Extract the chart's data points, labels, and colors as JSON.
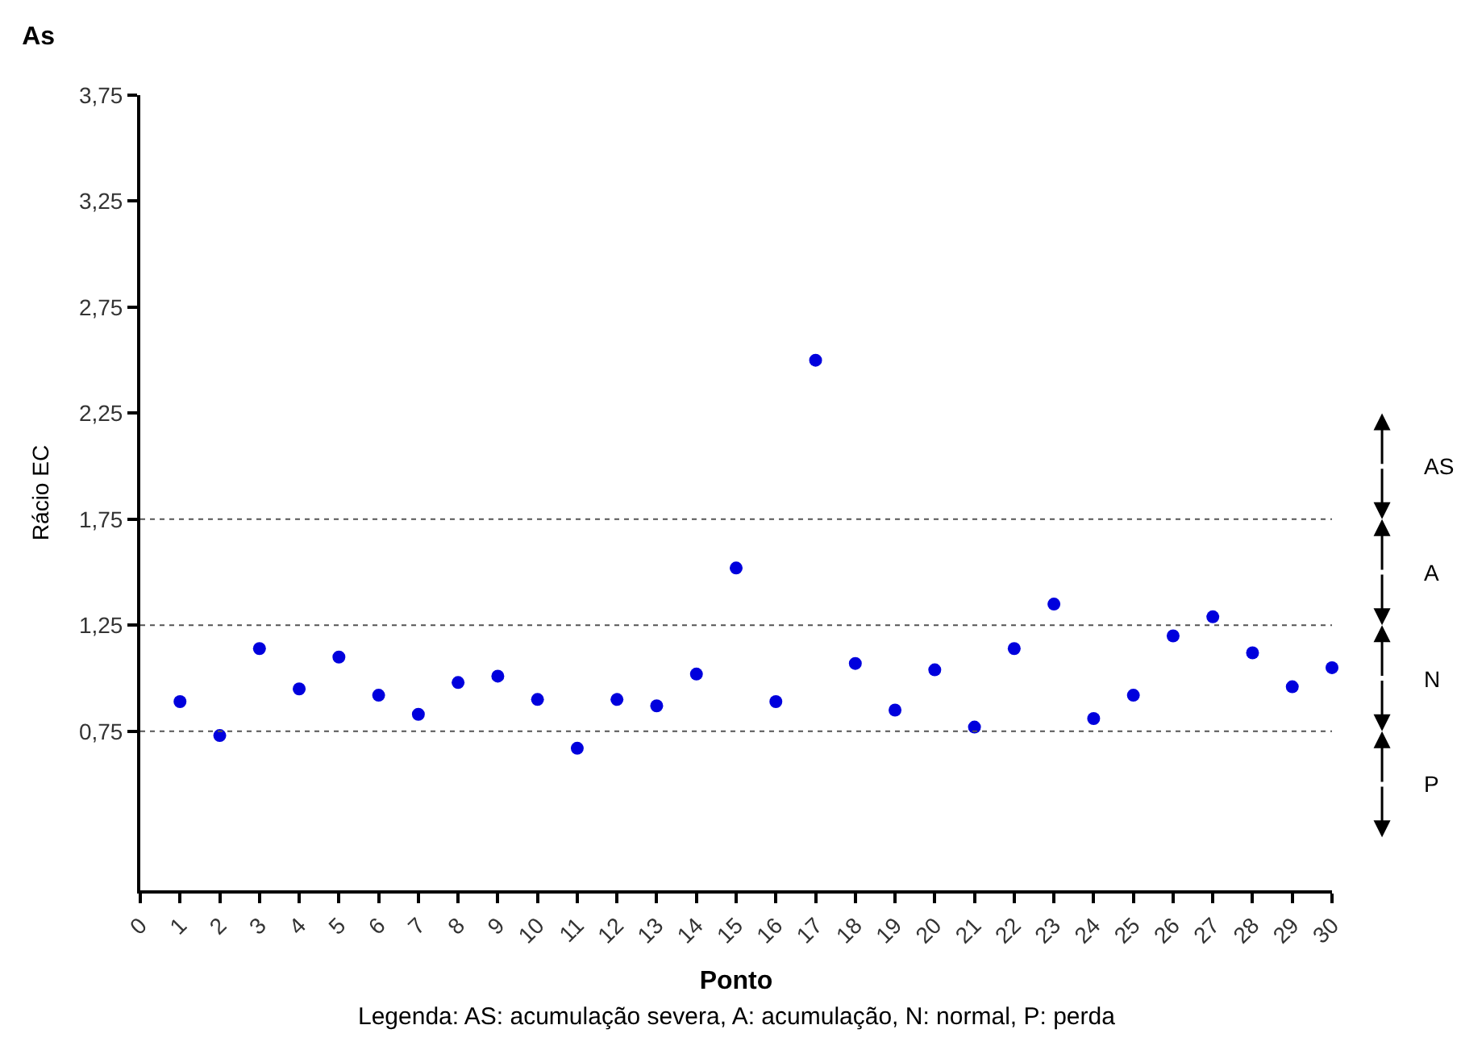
{
  "chart_data": {
    "type": "scatter",
    "title": "As",
    "xlabel": "Ponto",
    "ylabel": "Rácio EC",
    "x": [
      1,
      2,
      3,
      4,
      5,
      6,
      7,
      8,
      9,
      10,
      11,
      12,
      13,
      14,
      15,
      16,
      17,
      18,
      19,
      20,
      21,
      22,
      23,
      24,
      25,
      26,
      27,
      28,
      29,
      30
    ],
    "series": [
      {
        "color": "#0000dd",
        "values": [
          0.89,
          0.73,
          1.14,
          0.95,
          1.1,
          0.92,
          0.83,
          0.98,
          1.01,
          0.9,
          0.67,
          0.9,
          0.87,
          1.02,
          1.52,
          0.89,
          2.5,
          1.07,
          0.85,
          1.04,
          0.77,
          1.14,
          1.35,
          0.81,
          0.92,
          1.2,
          1.29,
          1.12,
          0.96,
          1.05
        ]
      }
    ],
    "xlim": [
      0,
      30
    ],
    "xticks": [
      0,
      1,
      2,
      3,
      4,
      5,
      6,
      7,
      8,
      9,
      10,
      11,
      12,
      13,
      14,
      15,
      16,
      17,
      18,
      19,
      20,
      21,
      22,
      23,
      24,
      25,
      26,
      27,
      28,
      29,
      30
    ],
    "ylim": [
      0,
      3.75
    ],
    "yticks": [
      {
        "value": 0.75,
        "label": "0,75"
      },
      {
        "value": 1.25,
        "label": "1,25"
      },
      {
        "value": 1.75,
        "label": "1,75"
      },
      {
        "value": 2.25,
        "label": "2,25"
      },
      {
        "value": 2.75,
        "label": "2,75"
      },
      {
        "value": 3.25,
        "label": "3,25"
      },
      {
        "value": 3.75,
        "label": "3,75"
      }
    ],
    "ref_lines": [
      {
        "axis": "y",
        "value": 0.75,
        "color": "#555555",
        "line_style": "dotted"
      },
      {
        "axis": "y",
        "value": 1.25,
        "color": "#555555",
        "line_style": "dotted"
      },
      {
        "axis": "y",
        "value": 1.75,
        "color": "#555555",
        "line_style": "dotted"
      }
    ],
    "annotations": [
      "AS",
      "A",
      "N",
      "P",
      "Legenda: AS: acumulação severa, A: acumulação, N: normal, P: perda"
    ],
    "marker": "circle"
  }
}
